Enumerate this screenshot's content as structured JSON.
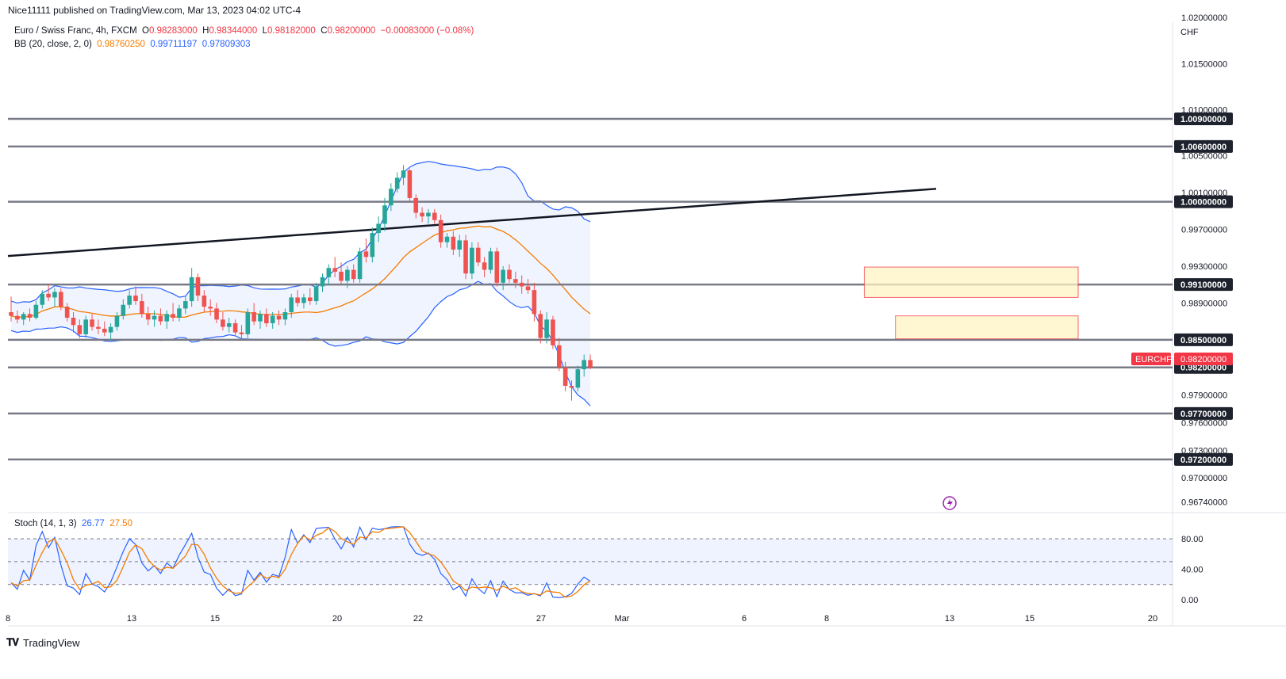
{
  "header": {
    "publisher": "Nice11111 published on TradingView.com, Mar 13, 2023 04:02 UTC-4"
  },
  "legend": {
    "symbol": "Euro / Swiss Franc, 4h, FXCM",
    "o_label": "O",
    "o": "0.98283000",
    "h_label": "H",
    "h": "0.98344000",
    "l_label": "L",
    "l": "0.98182000",
    "c_label": "C",
    "c": "0.98200000",
    "change": "−0.00083000 (−0.08%)",
    "bb_label": "BB (20, close, 2, 0)",
    "bb_basis": "0.98760250",
    "bb_upper": "0.99711197",
    "bb_lower": "0.97809303",
    "stoch_label": "Stoch (14, 1, 3)",
    "stoch_k": "26.77",
    "stoch_d": "27.50"
  },
  "brand": {
    "name": "TradingView"
  },
  "colors": {
    "up": "#26a69a",
    "down": "#ef5350",
    "basis": "#f57c00",
    "bands": "#2962ff",
    "level": "#787b86",
    "trend": "#131722",
    "zone_fill": "#fff3c4",
    "zone_stroke": "#f23645"
  },
  "chart_data": {
    "type": "candlestick",
    "currency": "CHF",
    "price_axis_labels": [
      "1.02000000",
      "1.01500000",
      "1.01000000",
      "1.00500000",
      "1.00100000",
      "0.99700000",
      "0.99300000",
      "0.98900000",
      "0.97900000",
      "0.97600000",
      "0.97300000",
      "0.97000000",
      "0.96740000"
    ],
    "horizontal_levels": [
      1.009,
      1.006,
      1.0,
      0.991,
      0.985,
      0.982,
      0.977,
      0.972
    ],
    "level_labels": [
      "1.00900000",
      "1.00600000",
      "1.00000000",
      "0.99100000",
      "0.98500000",
      "0.98200000",
      "0.97700000",
      "0.97200000"
    ],
    "last_price_tag": {
      "symbol": "EURCHF",
      "price": "0.98200000"
    },
    "x_tick_labels": [
      "8",
      "13",
      "15",
      "20",
      "22",
      "27",
      "Mar",
      "6",
      "8",
      "13",
      "15",
      "20"
    ],
    "trendline": {
      "start": {
        "date": "Feb 8",
        "price": 0.9941
      },
      "end": {
        "date": "Mar 13",
        "price": 1.0014
      }
    },
    "supply_zones": [
      {
        "top": 0.9929,
        "bottom": 0.9896
      },
      {
        "top": 0.9876,
        "bottom": 0.9851
      }
    ],
    "candles": [
      {
        "o": 0.988,
        "h": 0.9897,
        "l": 0.987,
        "c": 0.9876
      },
      {
        "o": 0.9876,
        "h": 0.9882,
        "l": 0.9868,
        "c": 0.9872
      },
      {
        "o": 0.9872,
        "h": 0.988,
        "l": 0.9866,
        "c": 0.9878
      },
      {
        "o": 0.9878,
        "h": 0.9884,
        "l": 0.987,
        "c": 0.9874
      },
      {
        "o": 0.9874,
        "h": 0.9892,
        "l": 0.9872,
        "c": 0.9888
      },
      {
        "o": 0.9888,
        "h": 0.9904,
        "l": 0.9884,
        "c": 0.99
      },
      {
        "o": 0.99,
        "h": 0.991,
        "l": 0.9892,
        "c": 0.9896
      },
      {
        "o": 0.9896,
        "h": 0.9906,
        "l": 0.9886,
        "c": 0.9902
      },
      {
        "o": 0.9902,
        "h": 0.9906,
        "l": 0.9882,
        "c": 0.9886
      },
      {
        "o": 0.9886,
        "h": 0.989,
        "l": 0.987,
        "c": 0.9874
      },
      {
        "o": 0.9874,
        "h": 0.988,
        "l": 0.9858,
        "c": 0.9866
      },
      {
        "o": 0.9866,
        "h": 0.9872,
        "l": 0.9852,
        "c": 0.9856
      },
      {
        "o": 0.9856,
        "h": 0.9876,
        "l": 0.9852,
        "c": 0.9872
      },
      {
        "o": 0.9872,
        "h": 0.9878,
        "l": 0.986,
        "c": 0.9864
      },
      {
        "o": 0.9864,
        "h": 0.9872,
        "l": 0.9856,
        "c": 0.9862
      },
      {
        "o": 0.9862,
        "h": 0.987,
        "l": 0.9854,
        "c": 0.9858
      },
      {
        "o": 0.9858,
        "h": 0.9868,
        "l": 0.985,
        "c": 0.9864
      },
      {
        "o": 0.9864,
        "h": 0.988,
        "l": 0.986,
        "c": 0.9876
      },
      {
        "o": 0.9876,
        "h": 0.9894,
        "l": 0.9872,
        "c": 0.9888
      },
      {
        "o": 0.9888,
        "h": 0.9904,
        "l": 0.9884,
        "c": 0.9898
      },
      {
        "o": 0.9898,
        "h": 0.9908,
        "l": 0.9888,
        "c": 0.9892
      },
      {
        "o": 0.9892,
        "h": 0.99,
        "l": 0.9874,
        "c": 0.9878
      },
      {
        "o": 0.9878,
        "h": 0.9886,
        "l": 0.9866,
        "c": 0.9872
      },
      {
        "o": 0.9872,
        "h": 0.9882,
        "l": 0.9864,
        "c": 0.9876
      },
      {
        "o": 0.9876,
        "h": 0.9884,
        "l": 0.9866,
        "c": 0.987
      },
      {
        "o": 0.987,
        "h": 0.9882,
        "l": 0.9862,
        "c": 0.9878
      },
      {
        "o": 0.9878,
        "h": 0.989,
        "l": 0.987,
        "c": 0.9874
      },
      {
        "o": 0.9874,
        "h": 0.9888,
        "l": 0.987,
        "c": 0.9884
      },
      {
        "o": 0.9884,
        "h": 0.9898,
        "l": 0.9878,
        "c": 0.9892
      },
      {
        "o": 0.9892,
        "h": 0.9928,
        "l": 0.9886,
        "c": 0.9918
      },
      {
        "o": 0.9918,
        "h": 0.9922,
        "l": 0.9892,
        "c": 0.9898
      },
      {
        "o": 0.9898,
        "h": 0.9904,
        "l": 0.988,
        "c": 0.9886
      },
      {
        "o": 0.9886,
        "h": 0.9894,
        "l": 0.9876,
        "c": 0.9884
      },
      {
        "o": 0.9884,
        "h": 0.989,
        "l": 0.9868,
        "c": 0.9872
      },
      {
        "o": 0.9872,
        "h": 0.988,
        "l": 0.986,
        "c": 0.9864
      },
      {
        "o": 0.9864,
        "h": 0.9874,
        "l": 0.9858,
        "c": 0.9868
      },
      {
        "o": 0.9868,
        "h": 0.9872,
        "l": 0.9854,
        "c": 0.9858
      },
      {
        "o": 0.9858,
        "h": 0.9866,
        "l": 0.985,
        "c": 0.9856
      },
      {
        "o": 0.9856,
        "h": 0.9884,
        "l": 0.9852,
        "c": 0.988
      },
      {
        "o": 0.988,
        "h": 0.989,
        "l": 0.9866,
        "c": 0.987
      },
      {
        "o": 0.987,
        "h": 0.9882,
        "l": 0.9862,
        "c": 0.9878
      },
      {
        "o": 0.9878,
        "h": 0.9884,
        "l": 0.9864,
        "c": 0.9868
      },
      {
        "o": 0.9868,
        "h": 0.988,
        "l": 0.9862,
        "c": 0.9876
      },
      {
        "o": 0.9876,
        "h": 0.9882,
        "l": 0.9866,
        "c": 0.9872
      },
      {
        "o": 0.9872,
        "h": 0.9884,
        "l": 0.9866,
        "c": 0.988
      },
      {
        "o": 0.988,
        "h": 0.99,
        "l": 0.9874,
        "c": 0.9896
      },
      {
        "o": 0.9896,
        "h": 0.9904,
        "l": 0.9886,
        "c": 0.989
      },
      {
        "o": 0.989,
        "h": 0.99,
        "l": 0.9884,
        "c": 0.9896
      },
      {
        "o": 0.9896,
        "h": 0.9906,
        "l": 0.9888,
        "c": 0.9892
      },
      {
        "o": 0.9892,
        "h": 0.9912,
        "l": 0.9888,
        "c": 0.9908
      },
      {
        "o": 0.9908,
        "h": 0.9922,
        "l": 0.9902,
        "c": 0.9918
      },
      {
        "o": 0.9918,
        "h": 0.9932,
        "l": 0.991,
        "c": 0.9928
      },
      {
        "o": 0.9928,
        "h": 0.994,
        "l": 0.9918,
        "c": 0.9924
      },
      {
        "o": 0.9924,
        "h": 0.9934,
        "l": 0.991,
        "c": 0.9914
      },
      {
        "o": 0.9914,
        "h": 0.993,
        "l": 0.9906,
        "c": 0.9926
      },
      {
        "o": 0.9926,
        "h": 0.9932,
        "l": 0.9912,
        "c": 0.9916
      },
      {
        "o": 0.9916,
        "h": 0.995,
        "l": 0.9912,
        "c": 0.9946
      },
      {
        "o": 0.9946,
        "h": 0.996,
        "l": 0.9934,
        "c": 0.994
      },
      {
        "o": 0.994,
        "h": 0.9972,
        "l": 0.9934,
        "c": 0.9966
      },
      {
        "o": 0.9966,
        "h": 0.9984,
        "l": 0.9956,
        "c": 0.9976
      },
      {
        "o": 0.9976,
        "h": 1.0004,
        "l": 0.9968,
        "c": 0.9996
      },
      {
        "o": 0.9996,
        "h": 1.002,
        "l": 0.999,
        "c": 1.0014
      },
      {
        "o": 1.0014,
        "h": 1.0032,
        "l": 1.001,
        "c": 1.0026
      },
      {
        "o": 1.0026,
        "h": 1.004,
        "l": 1.0018,
        "c": 1.0034
      },
      {
        "o": 1.0034,
        "h": 1.0036,
        "l": 1.0,
        "c": 1.0004
      },
      {
        "o": 1.0004,
        "h": 1.0008,
        "l": 0.9982,
        "c": 0.9988
      },
      {
        "o": 0.9988,
        "h": 0.9994,
        "l": 0.9978,
        "c": 0.9984
      },
      {
        "o": 0.9984,
        "h": 0.9992,
        "l": 0.9976,
        "c": 0.9988
      },
      {
        "o": 0.9988,
        "h": 0.9992,
        "l": 0.9976,
        "c": 0.998
      },
      {
        "o": 0.998,
        "h": 0.9986,
        "l": 0.995,
        "c": 0.9956
      },
      {
        "o": 0.9956,
        "h": 0.9966,
        "l": 0.995,
        "c": 0.9962
      },
      {
        "o": 0.9962,
        "h": 0.9968,
        "l": 0.9942,
        "c": 0.9948
      },
      {
        "o": 0.9948,
        "h": 0.9964,
        "l": 0.994,
        "c": 0.9958
      },
      {
        "o": 0.9958,
        "h": 0.9964,
        "l": 0.9916,
        "c": 0.9922
      },
      {
        "o": 0.9922,
        "h": 0.9956,
        "l": 0.9916,
        "c": 0.995
      },
      {
        "o": 0.995,
        "h": 0.9956,
        "l": 0.993,
        "c": 0.9934
      },
      {
        "o": 0.9934,
        "h": 0.994,
        "l": 0.9918,
        "c": 0.9926
      },
      {
        "o": 0.9926,
        "h": 0.995,
        "l": 0.9922,
        "c": 0.9946
      },
      {
        "o": 0.9946,
        "h": 0.995,
        "l": 0.9908,
        "c": 0.9912
      },
      {
        "o": 0.9912,
        "h": 0.993,
        "l": 0.9904,
        "c": 0.9926
      },
      {
        "o": 0.9926,
        "h": 0.9932,
        "l": 0.9912,
        "c": 0.9916
      },
      {
        "o": 0.9916,
        "h": 0.9924,
        "l": 0.9906,
        "c": 0.9912
      },
      {
        "o": 0.9912,
        "h": 0.992,
        "l": 0.99,
        "c": 0.9908
      },
      {
        "o": 0.9908,
        "h": 0.9916,
        "l": 0.99,
        "c": 0.9904
      },
      {
        "o": 0.9904,
        "h": 0.9912,
        "l": 0.987,
        "c": 0.9878
      },
      {
        "o": 0.9878,
        "h": 0.9882,
        "l": 0.9846,
        "c": 0.9852
      },
      {
        "o": 0.9852,
        "h": 0.988,
        "l": 0.9846,
        "c": 0.9872
      },
      {
        "o": 0.9872,
        "h": 0.9876,
        "l": 0.984,
        "c": 0.9844
      },
      {
        "o": 0.9844,
        "h": 0.9852,
        "l": 0.9816,
        "c": 0.982
      },
      {
        "o": 0.982,
        "h": 0.9826,
        "l": 0.9794,
        "c": 0.98
      },
      {
        "o": 0.98,
        "h": 0.9806,
        "l": 0.9784,
        "c": 0.9798
      },
      {
        "o": 0.9798,
        "h": 0.9822,
        "l": 0.9794,
        "c": 0.9818
      },
      {
        "o": 0.9818,
        "h": 0.9834,
        "l": 0.981,
        "c": 0.9828
      },
      {
        "o": 0.9828,
        "h": 0.9834,
        "l": 0.9818,
        "c": 0.982
      }
    ],
    "stochastic": {
      "upper": 80,
      "middle": 50,
      "lower": 20,
      "axis_labels": [
        "80.00",
        "40.00",
        "0.00"
      ]
    }
  }
}
